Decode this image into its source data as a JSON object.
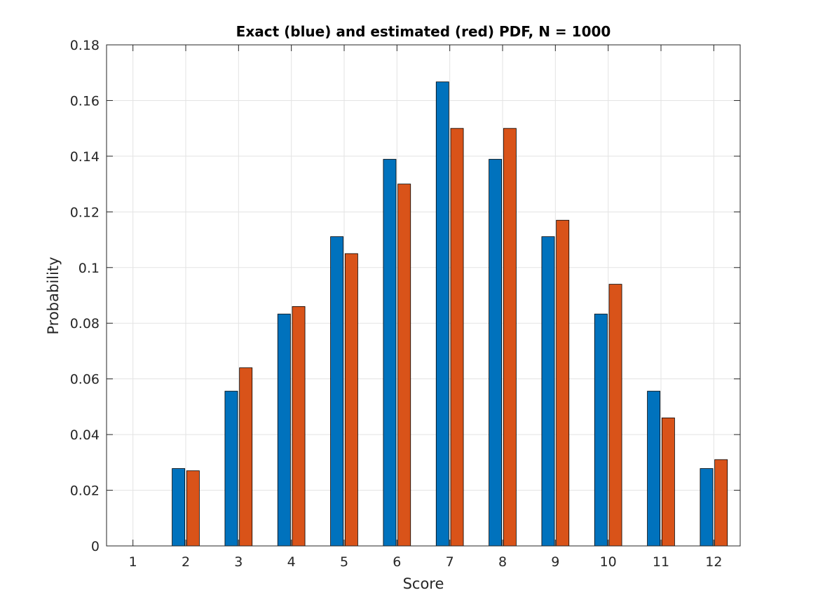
{
  "chart_data": {
    "type": "bar",
    "title": "Exact (blue) and estimated (red) PDF, N = 1000",
    "xlabel": "Score",
    "ylabel": "Probability",
    "categories": [
      "1",
      "2",
      "3",
      "4",
      "5",
      "6",
      "7",
      "8",
      "9",
      "10",
      "11",
      "12"
    ],
    "x": [
      1,
      2,
      3,
      4,
      5,
      6,
      7,
      8,
      9,
      10,
      11,
      12
    ],
    "xlim": [
      0.5,
      12.5
    ],
    "ylim": [
      0,
      0.18
    ],
    "yticks": [
      0,
      0.02,
      0.04,
      0.06,
      0.08,
      0.1,
      0.12,
      0.14,
      0.16,
      0.18
    ],
    "ytick_labels": [
      "0",
      "0.02",
      "0.04",
      "0.06",
      "0.08",
      "0.1",
      "0.12",
      "0.14",
      "0.16",
      "0.18"
    ],
    "grid": true,
    "legend": "none",
    "series": [
      {
        "color": "#0072BD",
        "values": [
          0,
          0.0278,
          0.0556,
          0.0833,
          0.1111,
          0.1389,
          0.1667,
          0.1389,
          0.1111,
          0.0833,
          0.0556,
          0.0278
        ]
      },
      {
        "color": "#D95319",
        "values": [
          0,
          0.027,
          0.064,
          0.086,
          0.105,
          0.13,
          0.15,
          0.15,
          0.117,
          0.094,
          0.046,
          0.031
        ]
      }
    ]
  }
}
